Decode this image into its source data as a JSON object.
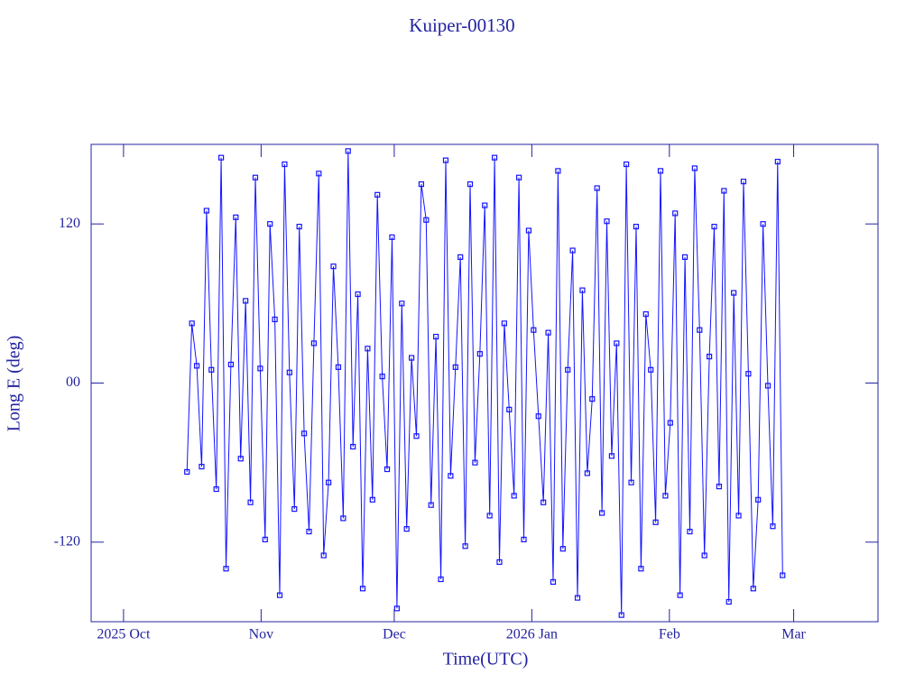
{
  "chart_data": {
    "type": "line",
    "title": "Kuiper-00130",
    "x_label": "Time(UTC)",
    "y_label": "Long E (deg)",
    "x": [
      14.3,
      15.4,
      16.5,
      17.6,
      18.7,
      19.8,
      20.9,
      22.0,
      23.1,
      24.2,
      25.3,
      26.4,
      27.5,
      28.6,
      29.7,
      30.8,
      31.9,
      33.0,
      34.1,
      35.2,
      36.3,
      37.4,
      38.5,
      39.6,
      40.7,
      41.8,
      42.9,
      44.0,
      45.1,
      46.2,
      47.3,
      48.4,
      49.5,
      50.6,
      51.7,
      52.8,
      53.9,
      55.0,
      56.1,
      57.2,
      58.3,
      59.4,
      60.5,
      61.6,
      62.7,
      63.8,
      64.9,
      66.0,
      67.1,
      68.2,
      69.3,
      70.4,
      71.5,
      72.6,
      73.7,
      74.8,
      75.9,
      77.0,
      78.1,
      79.2,
      80.3,
      81.4,
      82.5,
      83.6,
      84.7,
      85.8,
      86.9,
      88.0,
      89.1,
      90.2,
      91.3,
      92.4,
      93.5,
      94.6,
      95.7,
      96.8,
      97.9,
      99.0,
      100.1,
      101.2,
      102.3,
      103.4,
      104.5,
      105.6,
      106.7,
      107.8,
      108.9,
      110.0,
      111.1,
      112.2,
      113.3,
      114.4,
      115.5,
      116.6,
      117.7,
      118.8,
      119.9,
      121.0,
      122.1,
      123.2,
      124.3,
      125.4,
      126.5,
      127.6,
      128.7,
      129.8,
      130.9,
      132.0,
      133.1,
      134.2,
      135.3,
      136.4,
      137.5,
      138.6,
      139.7,
      140.8,
      141.9,
      143.0,
      144.1,
      145.2,
      146.3,
      147.4,
      148.5
    ],
    "series": [
      {
        "color": "#1414ff",
        "values": [
          -67,
          45,
          13,
          -63,
          130,
          10,
          -80,
          170,
          -140,
          14,
          125,
          -57,
          62,
          -90,
          155,
          11,
          -118,
          120,
          48,
          -160,
          165,
          8,
          -95,
          118,
          -38,
          -112,
          30,
          158,
          -130,
          -75,
          88,
          12,
          -102,
          175,
          -48,
          67,
          -155,
          26,
          -88,
          142,
          5,
          -65,
          110,
          -170,
          60,
          -110,
          19,
          -40,
          150,
          123,
          -92,
          35,
          -148,
          168,
          -70,
          12,
          95,
          -123,
          150,
          -60,
          22,
          134,
          -100,
          170,
          -135,
          45,
          -20,
          -85,
          155,
          -118,
          115,
          40,
          -25,
          -90,
          38,
          -150,
          160,
          -125,
          10,
          100,
          -162,
          70,
          -68,
          -12,
          147,
          -98,
          122,
          -55,
          30,
          -175,
          165,
          -75,
          118,
          -140,
          52,
          10,
          -105,
          160,
          -85,
          -30,
          128,
          -160,
          95,
          -112,
          162,
          40,
          -130,
          20,
          118,
          -78,
          145,
          -165,
          68,
          -100,
          152,
          7,
          -155,
          -88,
          120,
          -2,
          -108,
          167,
          -145
        ]
      }
    ],
    "xlim": [
      -7.3,
      170
    ],
    "xticks": [
      {
        "value": 0,
        "label": "2025 Oct"
      },
      {
        "value": 31,
        "label": "Nov"
      },
      {
        "value": 61,
        "label": "Dec"
      },
      {
        "value": 92,
        "label": "2026 Jan"
      },
      {
        "value": 123,
        "label": "Feb"
      },
      {
        "value": 151,
        "label": "Mar"
      }
    ],
    "ylim": [
      -180,
      180
    ],
    "yticks": [
      -120,
      {
        "value": 0,
        "label": "00"
      },
      120
    ],
    "axis_color": "#2323a0"
  }
}
